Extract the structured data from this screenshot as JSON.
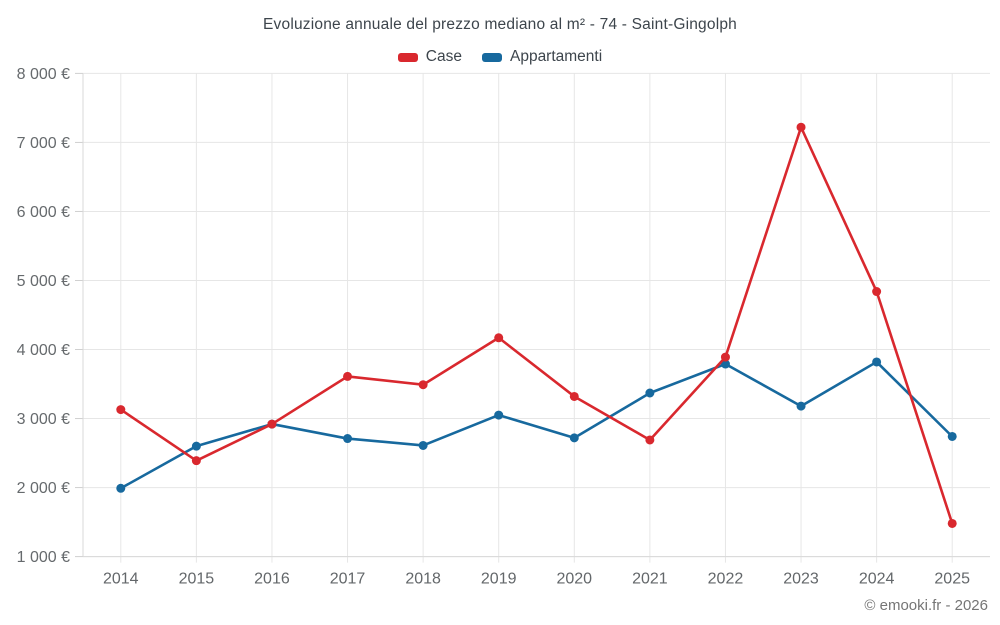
{
  "chart": {
    "title": "Evoluzione annuale del prezzo mediano al m² - 74 - Saint-Gingolph",
    "footer": "© emooki.fr - 2026"
  },
  "chart_data": {
    "type": "line",
    "title": "Evoluzione annuale del prezzo mediano al m² - 74 - Saint-Gingolph",
    "x": [
      2014,
      2015,
      2016,
      2017,
      2018,
      2019,
      2020,
      2021,
      2022,
      2023,
      2024,
      2025
    ],
    "series": [
      {
        "name": "Case",
        "color": "#d9282e",
        "values": [
          3130,
          2390,
          2920,
          3610,
          3490,
          4170,
          3320,
          2690,
          3890,
          7220,
          4840,
          1480
        ]
      },
      {
        "name": "Appartamenti",
        "color": "#17699e",
        "values": [
          1990,
          2600,
          2920,
          2710,
          2610,
          3050,
          2720,
          3370,
          3790,
          3180,
          3820,
          2740
        ]
      }
    ],
    "xlabel": "",
    "ylabel": "",
    "ylim": [
      1000,
      8000
    ],
    "ytick_step": 1000,
    "ytick_suffix": " €",
    "grid": true,
    "legend_position": "top"
  }
}
